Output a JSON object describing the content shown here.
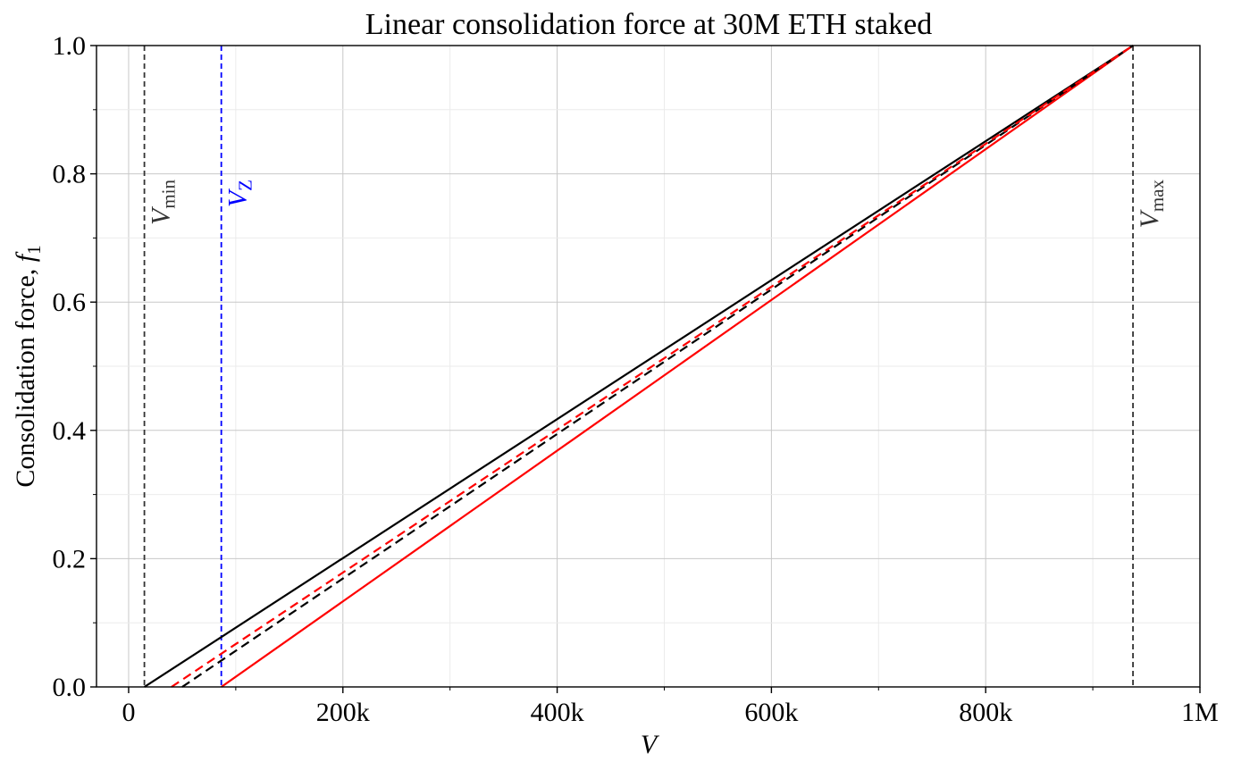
{
  "chart_data": {
    "type": "line",
    "title": "Linear consolidation force at 30M ETH staked",
    "xlabel": "V",
    "ylabel_main": "Consolidation force, ",
    "ylabel_f": "f",
    "ylabel_sub": "1",
    "xlim": [
      -30000,
      1000000
    ],
    "ylim": [
      0,
      1.0
    ],
    "x_ticks": [
      {
        "value": 0,
        "label": "0"
      },
      {
        "value": 200000,
        "label": "200k"
      },
      {
        "value": 400000,
        "label": "400k"
      },
      {
        "value": 600000,
        "label": "600k"
      },
      {
        "value": 800000,
        "label": "800k"
      },
      {
        "value": 1000000,
        "label": "1M"
      }
    ],
    "y_ticks": [
      {
        "value": 0.0,
        "label": "0.0"
      },
      {
        "value": 0.2,
        "label": "0.2"
      },
      {
        "value": 0.4,
        "label": "0.4"
      },
      {
        "value": 0.6,
        "label": "0.6"
      },
      {
        "value": 0.8,
        "label": "0.8"
      },
      {
        "value": 1.0,
        "label": "1.0"
      }
    ],
    "x_minor_ticks": [
      100000,
      300000,
      500000,
      700000,
      900000
    ],
    "y_minor_ticks": [
      0.1,
      0.3,
      0.5,
      0.7,
      0.9
    ],
    "grid": true,
    "series": [
      {
        "name": "black-solid",
        "color": "#000000",
        "dashed": false,
        "x": [
          14700,
          937500
        ],
        "y": [
          0.0,
          1.0
        ]
      },
      {
        "name": "red-solid",
        "color": "#ff0000",
        "dashed": false,
        "x": [
          86500,
          937500
        ],
        "y": [
          0.0,
          1.0
        ]
      },
      {
        "name": "black-dashed",
        "color": "#000000",
        "dashed": true,
        "x": [
          50000,
          937500
        ],
        "y": [
          0.0,
          1.0
        ]
      },
      {
        "name": "red-dashed",
        "color": "#ff0000",
        "dashed": true,
        "x": [
          40000,
          937500
        ],
        "y": [
          0.0,
          1.0
        ]
      }
    ],
    "vlines": [
      {
        "name": "vmin",
        "x": 14700,
        "label_main": "V",
        "label_sub": "min",
        "color": "#333333"
      },
      {
        "name": "vz",
        "x": 86500,
        "label_main": "V",
        "label_sub": "Z",
        "color": "#0000ff"
      },
      {
        "name": "vmax",
        "x": 937500,
        "label_main": "V",
        "label_sub": "max",
        "color": "#333333"
      }
    ]
  }
}
